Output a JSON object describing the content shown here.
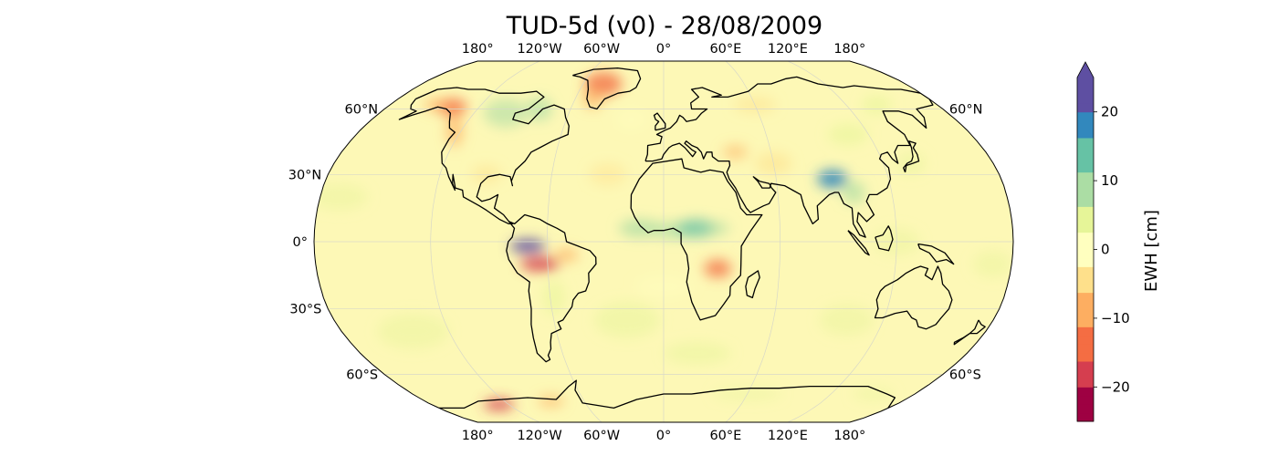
{
  "title": "TUD-5d (v0) - 28/08/2009",
  "lon_ticks": [
    {
      "lon": -180,
      "label": "180°"
    },
    {
      "lon": -120,
      "label": "120°W"
    },
    {
      "lon": -60,
      "label": "60°W"
    },
    {
      "lon": 0,
      "label": "0°"
    },
    {
      "lon": 60,
      "label": "60°E"
    },
    {
      "lon": 120,
      "label": "120°E"
    },
    {
      "lon": 180,
      "label": "180°"
    }
  ],
  "lat_ticks": [
    {
      "lat": 60,
      "left": "60°N",
      "right": "60°N"
    },
    {
      "lat": 30,
      "left": "30°N",
      "right": ""
    },
    {
      "lat": 0,
      "left": "0°",
      "right": ""
    },
    {
      "lat": -30,
      "left": "30°S",
      "right": ""
    },
    {
      "lat": -60,
      "left": "60°S",
      "right": "60°S"
    }
  ],
  "colorbar": {
    "label": "EWH [cm]",
    "vmin": -25,
    "vmax": 25,
    "extend": "max",
    "ticks": [
      {
        "value": 20,
        "label": "20"
      },
      {
        "value": 10,
        "label": "10"
      },
      {
        "value": 0,
        "label": "0"
      },
      {
        "value": -10,
        "label": "−10"
      },
      {
        "value": -20,
        "label": "−20"
      }
    ],
    "colors": [
      "#9e0142",
      "#d53e4f",
      "#f46d43",
      "#fdae61",
      "#fee08b",
      "#ffffbf",
      "#e6f598",
      "#abdda4",
      "#66c2a5",
      "#3288bd",
      "#5e4fa2"
    ]
  },
  "projection": "Robinson",
  "central_longitude": 0,
  "colors": {
    "ocean": "#fdf8b6",
    "coastline": "#000000",
    "gridline": "#d8d8c8",
    "extend_tip": "#5e4fa2"
  }
}
